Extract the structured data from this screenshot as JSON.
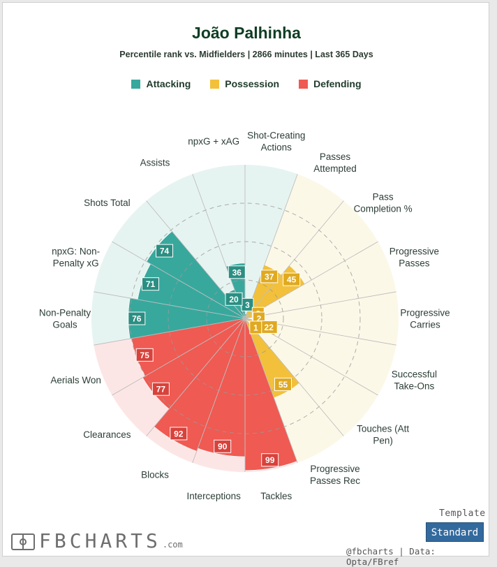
{
  "title": "João Palhinha",
  "subtitle": "Percentile rank vs. Midfielders | 2866 minutes | Last 365 Days",
  "legend": [
    {
      "label": "Attacking",
      "color": "#38a89d"
    },
    {
      "label": "Possession",
      "color": "#f2c03a"
    },
    {
      "label": "Defending",
      "color": "#ef5a52"
    }
  ],
  "chart_data": {
    "type": "radar",
    "range": [
      0,
      100
    ],
    "gridlines": [
      25,
      50,
      75
    ],
    "categories": [
      {
        "label": "Shot-Creating\nActions",
        "value": 3,
        "group": "Attacking"
      },
      {
        "label": "Passes\nAttempted",
        "value": 37,
        "group": "Possession"
      },
      {
        "label": "Pass\nCompletion %",
        "value": 45,
        "group": "Possession"
      },
      {
        "label": "Progressive\nPasses",
        "value": 8,
        "group": "Possession"
      },
      {
        "label": "Progressive\nCarries",
        "value": 2,
        "group": "Possession"
      },
      {
        "label": "Successful\nTake-Ons",
        "value": 22,
        "group": "Possession"
      },
      {
        "label": "Touches (Att\nPen)",
        "value": 1,
        "group": "Possession"
      },
      {
        "label": "Progressive\nPasses Rec",
        "value": 55,
        "group": "Possession"
      },
      {
        "label": "Tackles",
        "value": 99,
        "group": "Defending"
      },
      {
        "label": "Interceptions",
        "value": 90,
        "group": "Defending"
      },
      {
        "label": "Blocks",
        "value": 92,
        "group": "Defending"
      },
      {
        "label": "Clearances",
        "value": 77,
        "group": "Defending"
      },
      {
        "label": "Aerials Won",
        "value": 75,
        "group": "Defending"
      },
      {
        "label": "Non-Penalty\nGoals",
        "value": 76,
        "group": "Attacking"
      },
      {
        "label": "npxG: Non-\nPenalty xG",
        "value": 71,
        "group": "Attacking"
      },
      {
        "label": "Shots Total",
        "value": 74,
        "group": "Attacking"
      },
      {
        "label": "Assists",
        "value": 20,
        "group": "Attacking"
      },
      {
        "label": "npxG + xAG",
        "value": 36,
        "group": "Attacking"
      }
    ],
    "group_colors": {
      "Attacking": {
        "fill": "#38a89d",
        "bg": "#e6f4f1",
        "text_box": "#2a8f83"
      },
      "Possession": {
        "fill": "#f2c03a",
        "bg": "#fcf8e8",
        "text_box": "#e0a91f"
      },
      "Defending": {
        "fill": "#ef5a52",
        "bg": "#fce6e5",
        "text_box": "#d8423b"
      }
    }
  },
  "template": {
    "label": "Template",
    "button": "Standard"
  },
  "brand": {
    "name": "FBCHARTS",
    "suffix": ".com"
  },
  "credit": "@fbcharts | Data: Opta/FBref"
}
